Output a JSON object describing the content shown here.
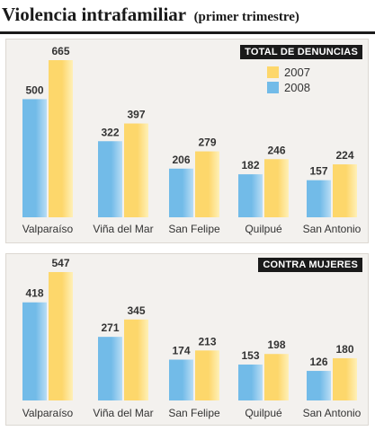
{
  "header": {
    "title": "Violencia intrafamiliar",
    "subtitle": "(primer trimestre)"
  },
  "colors": {
    "y2007": "#fdd76b",
    "y2007_light": "#fff0b8",
    "y2008": "#72bbe8",
    "y2008_light": "#b9ddf5",
    "panel_bg": "#f3f1ee",
    "text": "#333333"
  },
  "chart_data": [
    {
      "type": "bar",
      "title": "TOTAL DE DENUNCIAS",
      "legend_position": "top-right",
      "categories": [
        "Valparaíso",
        "Viña del Mar",
        "San Felipe",
        "Quilpué",
        "San Antonio"
      ],
      "series": [
        {
          "name": "2008",
          "values": [
            500,
            322,
            206,
            182,
            157
          ]
        },
        {
          "name": "2007",
          "values": [
            665,
            397,
            279,
            246,
            224
          ]
        }
      ],
      "ylim": [
        0,
        665
      ]
    },
    {
      "type": "bar",
      "title": "CONTRA MUJERES",
      "categories": [
        "Valparaíso",
        "Viña del Mar",
        "San Felipe",
        "Quilpué",
        "San Antonio"
      ],
      "series": [
        {
          "name": "2008",
          "values": [
            418,
            271,
            174,
            153,
            126
          ]
        },
        {
          "name": "2007",
          "values": [
            547,
            345,
            213,
            198,
            180
          ]
        }
      ],
      "ylim": [
        0,
        547
      ]
    }
  ]
}
